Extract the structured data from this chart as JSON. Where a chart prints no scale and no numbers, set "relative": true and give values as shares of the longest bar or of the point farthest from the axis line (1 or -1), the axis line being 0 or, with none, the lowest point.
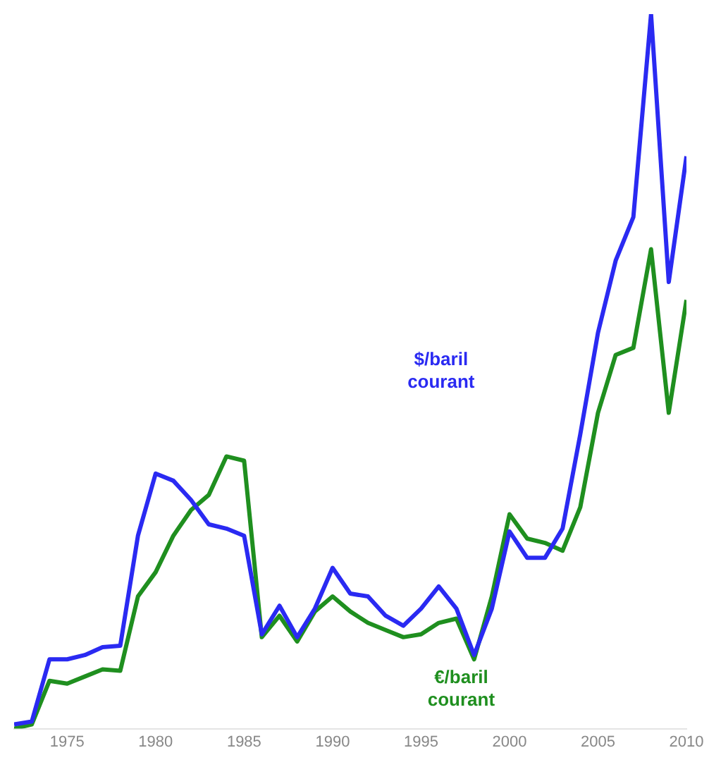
{
  "chart_data": {
    "type": "line",
    "relative": true,
    "x": [
      1972,
      1973,
      1974,
      1975,
      1976,
      1977,
      1978,
      1979,
      1980,
      1981,
      1982,
      1983,
      1984,
      1985,
      1986,
      1987,
      1988,
      1989,
      1990,
      1991,
      1992,
      1993,
      1994,
      1995,
      1996,
      1997,
      1998,
      1999,
      2000,
      2001,
      2002,
      2003,
      2004,
      2005,
      2006,
      2007,
      2008,
      2009,
      2010
    ],
    "xlim": [
      1972,
      2010
    ],
    "xticks": [
      1975,
      1980,
      1985,
      1990,
      1995,
      2000,
      2005,
      2010
    ],
    "grid": false,
    "legend": false,
    "tick_labels": "x",
    "marker": "none",
    "line_style": "solid",
    "series": [
      {
        "name": "$/baril courant",
        "color": "#2a2af2",
        "values": [
          0.006,
          0.01,
          0.097,
          0.097,
          0.103,
          0.114,
          0.116,
          0.27,
          0.357,
          0.347,
          0.32,
          0.286,
          0.28,
          0.27,
          0.132,
          0.172,
          0.128,
          0.168,
          0.225,
          0.189,
          0.185,
          0.158,
          0.144,
          0.168,
          0.199,
          0.168,
          0.103,
          0.168,
          0.276,
          0.239,
          0.239,
          0.28,
          0.412,
          0.554,
          0.655,
          0.716,
          1,
          0.625,
          0.801
        ]
      },
      {
        "name": "€/baril courant",
        "color": "#1f8f1f",
        "values": [
          0,
          0.006,
          0.067,
          0.063,
          0.073,
          0.083,
          0.081,
          0.185,
          0.219,
          0.27,
          0.306,
          0.327,
          0.381,
          0.375,
          0.128,
          0.158,
          0.122,
          0.164,
          0.185,
          0.164,
          0.148,
          0.138,
          0.128,
          0.132,
          0.148,
          0.154,
          0.097,
          0.185,
          0.3,
          0.266,
          0.26,
          0.249,
          0.31,
          0.442,
          0.523,
          0.533,
          0.671,
          0.442,
          0.6
        ]
      }
    ]
  }
}
